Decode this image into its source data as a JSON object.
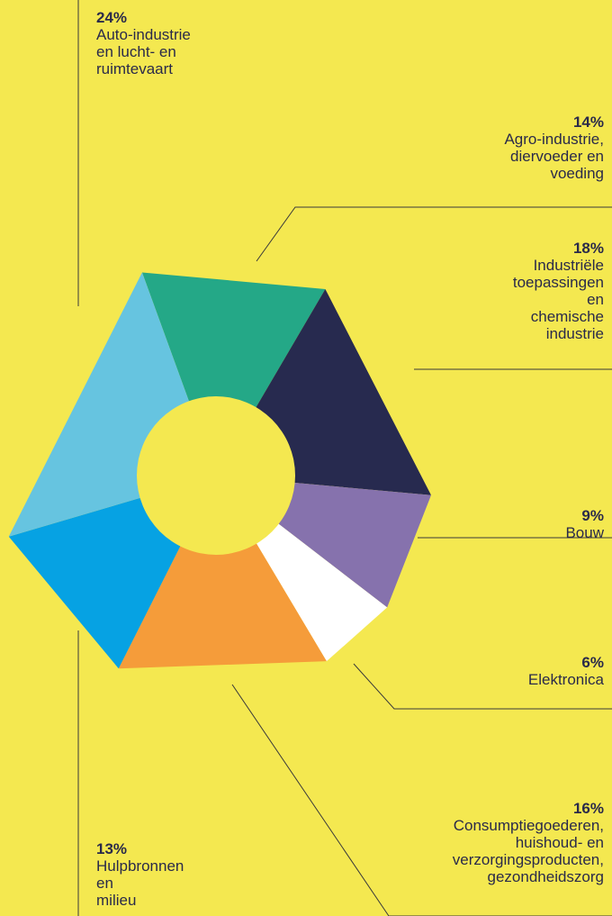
{
  "chart_data": {
    "type": "pie",
    "donut": true,
    "slices": [
      {
        "pct_label": "14%",
        "value": 14,
        "label": "Agro-industrie,\ndiervoeder en\nvoeding",
        "color": "#24a887"
      },
      {
        "pct_label": "18%",
        "value": 18,
        "label": "Industriële\ntoepassingen\nen\nchemische\nindustrie",
        "color": "#272a4f"
      },
      {
        "pct_label": "9%",
        "value": 9,
        "label": "Bouw",
        "color": "#8672ad"
      },
      {
        "pct_label": "6%",
        "value": 6,
        "label": "Elektronica",
        "color": "#ffffff"
      },
      {
        "pct_label": "16%",
        "value": 16,
        "label": "Consumptiegoederen,\nhuishoud- en\nverzorgingsproducten,\ngezondheidszorg",
        "color": "#f59c3a"
      },
      {
        "pct_label": "13%",
        "value": 13,
        "label": "Hulpbronnen\nen\nmilieu",
        "color": "#06a2e3"
      },
      {
        "pct_label": "24%",
        "value": 24,
        "label": "Auto-industrie\nen lucht- en\nruimtevaart",
        "color": "#66c4e0"
      }
    ]
  }
}
